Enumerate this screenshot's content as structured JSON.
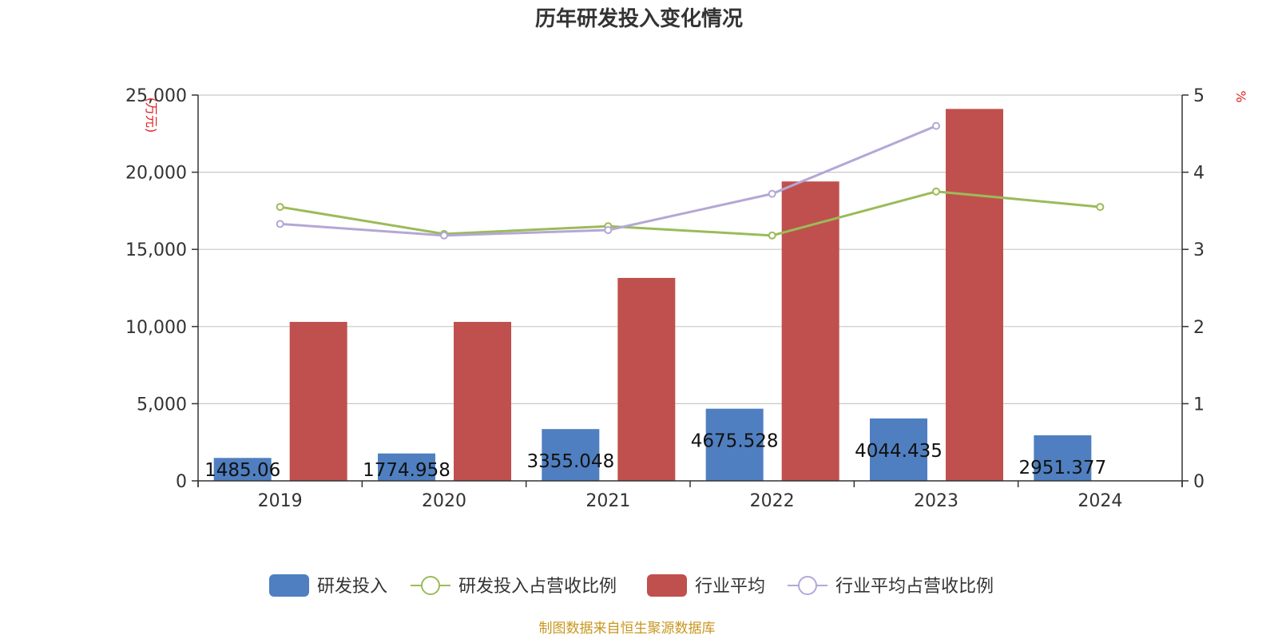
{
  "chart_data": {
    "type": "bar",
    "title": "历年研发投入变化情况",
    "categories": [
      "2019",
      "2020",
      "2021",
      "2022",
      "2023",
      "2024"
    ],
    "y_left": {
      "unit": "(万元)",
      "ylim": [
        0,
        25000
      ],
      "ticks": [
        0,
        5000,
        10000,
        15000,
        20000,
        25000
      ],
      "tick_labels": [
        "0",
        "5,000",
        "10,000",
        "15,000",
        "20,000",
        "25,000"
      ]
    },
    "y_right": {
      "unit": "%",
      "ylim": [
        0,
        5
      ],
      "ticks": [
        0,
        1,
        2,
        3,
        4,
        5
      ],
      "tick_labels": [
        "0",
        "1",
        "2",
        "3",
        "4",
        "5"
      ]
    },
    "series": [
      {
        "name": "研发投入",
        "kind": "bar",
        "axis": "left",
        "color": "#4f7fc0",
        "values": [
          1485.06,
          1774.958,
          3355.048,
          4675.528,
          4044.435,
          2951.377
        ],
        "labels": [
          "1485.06",
          "1774.958",
          "3355.048",
          "4675.528",
          "4044.435",
          "2951.377"
        ]
      },
      {
        "name": "研发投入占营收比例",
        "kind": "line",
        "axis": "right",
        "color": "#9bbb59",
        "values": [
          3.55,
          3.2,
          3.3,
          3.18,
          3.75,
          3.55
        ]
      },
      {
        "name": "行业平均",
        "kind": "bar",
        "axis": "left",
        "color": "#c0504d",
        "values": [
          10300,
          10300,
          13150,
          19400,
          24100,
          null
        ]
      },
      {
        "name": "行业平均占营收比例",
        "kind": "line",
        "axis": "right",
        "color": "#b4a7d6",
        "values": [
          3.33,
          3.18,
          3.25,
          3.72,
          4.6,
          null
        ]
      }
    ],
    "grid": true,
    "legend_position": "bottom-center"
  },
  "source_text": "制图数据来自恒生聚源数据库"
}
